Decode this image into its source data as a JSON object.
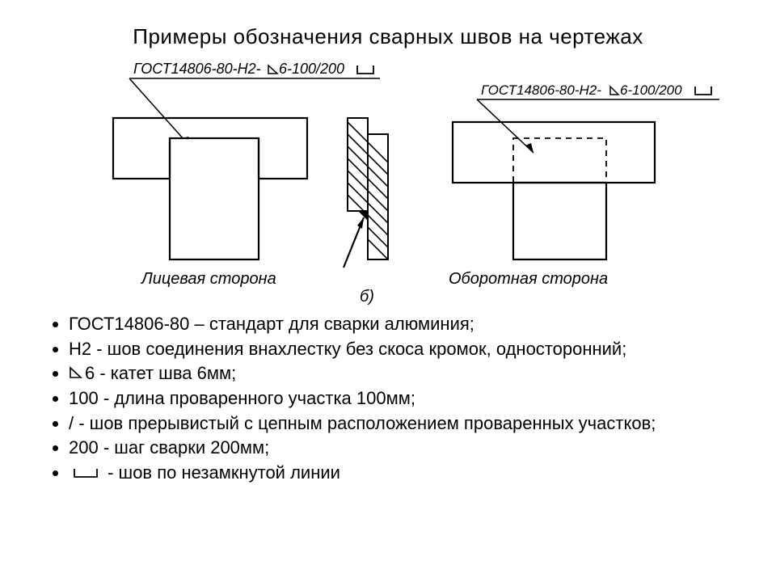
{
  "title": "Примеры обозначения сварных швов  на чертежах",
  "diagram": {
    "callout_left": "ГОСТ14806-80-Н2-",
    "callout_left_suffix": "6-100/200",
    "callout_right": "ГОСТ14806-80-Н2-",
    "callout_right_suffix": "6-100/200",
    "label_left": "Лицевая сторона",
    "label_right": "Оборотная сторона",
    "label_sub": "б)",
    "stroke": "#000000",
    "stroke_width": 2,
    "thin_stroke_width": 1.3,
    "bg": "#ffffff",
    "font": "italic 18px Arial"
  },
  "bullets": [
    {
      "text": "ГОСТ14806-80 – стандарт для сварки алюминия;"
    },
    {
      "text": "Н2 - шов соединения внахлестку без скоса кромок, односторонний;"
    },
    {
      "icon": "triangle",
      "text": "6 - катет шва 6мм;"
    },
    {
      "text": "100 - длина проваренного участка 100мм;"
    },
    {
      "text": "/ - шов прерывистый с цепным расположением проваренных участков;"
    },
    {
      "text": "200 - шаг сварки 200мм;"
    },
    {
      "icon": "openline",
      "text": " - шов по незамкнутой линии"
    }
  ],
  "colors": {
    "text": "#000000",
    "background": "#ffffff"
  }
}
